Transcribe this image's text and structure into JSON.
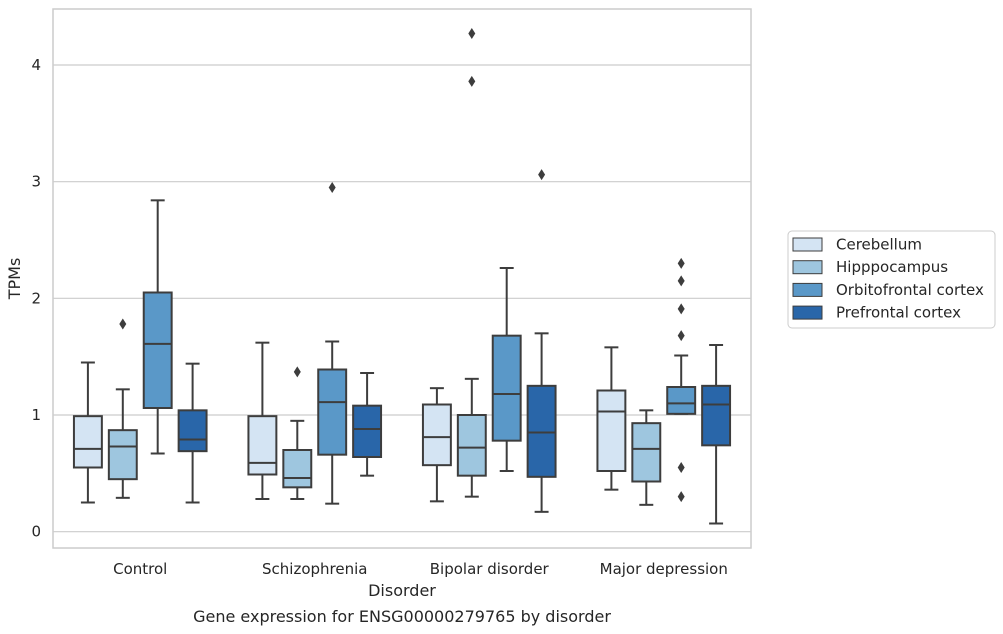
{
  "chart_data": {
    "type": "box",
    "title": "",
    "caption": "Gene expression for ENSG00000279765 by disorder",
    "xlabel": "Disorder",
    "ylabel": "TPMs",
    "ylim": [
      -0.14,
      4.48
    ],
    "yticks": [
      0,
      1,
      2,
      3,
      4
    ],
    "grid": "horizontal",
    "legend_position": "right",
    "categories": [
      "Control",
      "Schizophrenia",
      "Bipolar disorder",
      "Major depression"
    ],
    "series": [
      {
        "name": "Cerebellum",
        "color": "#d4e4f3",
        "boxes": [
          {
            "whislo": 0.25,
            "q1": 0.55,
            "med": 0.71,
            "q3": 0.99,
            "whishi": 1.45,
            "fliers": []
          },
          {
            "whislo": 0.28,
            "q1": 0.49,
            "med": 0.59,
            "q3": 0.99,
            "whishi": 1.62,
            "fliers": []
          },
          {
            "whislo": 0.26,
            "q1": 0.57,
            "med": 0.81,
            "q3": 1.09,
            "whishi": 1.23,
            "fliers": []
          },
          {
            "whislo": 0.36,
            "q1": 0.52,
            "med": 1.03,
            "q3": 1.21,
            "whishi": 1.58,
            "fliers": []
          }
        ]
      },
      {
        "name": "Hipppocampus",
        "color": "#9ec6df",
        "boxes": [
          {
            "whislo": 0.29,
            "q1": 0.45,
            "med": 0.73,
            "q3": 0.87,
            "whishi": 1.22,
            "fliers": [
              1.78
            ]
          },
          {
            "whislo": 0.28,
            "q1": 0.38,
            "med": 0.46,
            "q3": 0.7,
            "whishi": 0.95,
            "fliers": [
              1.37
            ]
          },
          {
            "whislo": 0.3,
            "q1": 0.48,
            "med": 0.72,
            "q3": 1.0,
            "whishi": 1.31,
            "fliers": [
              3.86,
              4.27
            ]
          },
          {
            "whislo": 0.23,
            "q1": 0.43,
            "med": 0.71,
            "q3": 0.93,
            "whishi": 1.04,
            "fliers": []
          }
        ]
      },
      {
        "name": "Orbitofrontal cortex",
        "color": "#5a98c8",
        "boxes": [
          {
            "whislo": 0.67,
            "q1": 1.06,
            "med": 1.61,
            "q3": 2.05,
            "whishi": 2.84,
            "fliers": []
          },
          {
            "whislo": 0.24,
            "q1": 0.66,
            "med": 1.11,
            "q3": 1.39,
            "whishi": 1.63,
            "fliers": [
              2.95
            ]
          },
          {
            "whislo": 0.52,
            "q1": 0.78,
            "med": 1.18,
            "q3": 1.68,
            "whishi": 2.26,
            "fliers": []
          },
          {
            "whislo": 1.01,
            "q1": 1.01,
            "med": 1.1,
            "q3": 1.24,
            "whishi": 1.51,
            "fliers": [
              0.3,
              0.55,
              1.68,
              1.91,
              2.15,
              2.3
            ]
          }
        ]
      },
      {
        "name": "Prefrontal cortex",
        "color": "#2966a9",
        "boxes": [
          {
            "whislo": 0.25,
            "q1": 0.69,
            "med": 0.79,
            "q3": 1.04,
            "whishi": 1.44,
            "fliers": []
          },
          {
            "whislo": 0.48,
            "q1": 0.64,
            "med": 0.88,
            "q3": 1.08,
            "whishi": 1.36,
            "fliers": []
          },
          {
            "whislo": 0.17,
            "q1": 0.47,
            "med": 0.85,
            "q3": 1.25,
            "whishi": 1.7,
            "fliers": [
              3.06
            ]
          },
          {
            "whislo": 0.07,
            "q1": 0.74,
            "med": 1.09,
            "q3": 1.25,
            "whishi": 1.6,
            "fliers": []
          }
        ]
      }
    ]
  }
}
